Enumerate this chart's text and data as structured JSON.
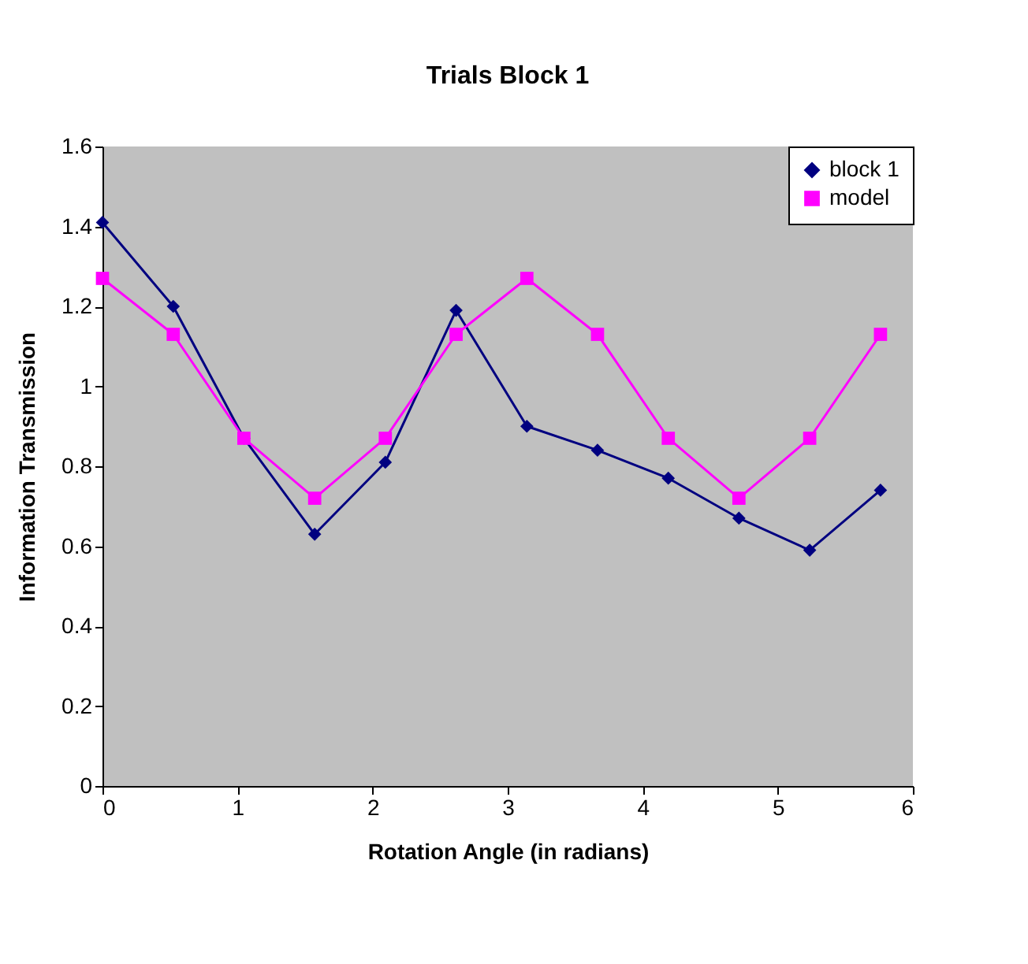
{
  "chart_data": {
    "type": "line",
    "title": "Trials Block 1",
    "xlabel": "Rotation Angle (in radians)",
    "ylabel": "Information Transmission",
    "x": [
      0,
      0.524,
      1.047,
      1.571,
      2.094,
      2.618,
      3.142,
      3.665,
      4.189,
      4.712,
      5.236,
      5.76
    ],
    "series": [
      {
        "name": "block 1",
        "color": "#000080",
        "marker": "diamond",
        "values": [
          1.41,
          1.2,
          0.87,
          0.63,
          0.81,
          1.19,
          0.9,
          0.84,
          0.77,
          0.67,
          0.59,
          0.74
        ]
      },
      {
        "name": "model",
        "color": "#ff00ff",
        "marker": "square",
        "values": [
          1.27,
          1.13,
          0.87,
          0.72,
          0.87,
          1.13,
          1.27,
          1.13,
          0.87,
          0.72,
          0.87,
          1.13
        ]
      }
    ],
    "xlim": [
      0,
      6
    ],
    "xticks": [
      0,
      1,
      2,
      3,
      4,
      5,
      6
    ],
    "ylim": [
      0,
      1.6
    ],
    "yticks": [
      0,
      0.2,
      0.4,
      0.6,
      0.8,
      1,
      1.2,
      1.4,
      1.6
    ],
    "grid": false,
    "legend": "top right",
    "line_style": "solid"
  }
}
